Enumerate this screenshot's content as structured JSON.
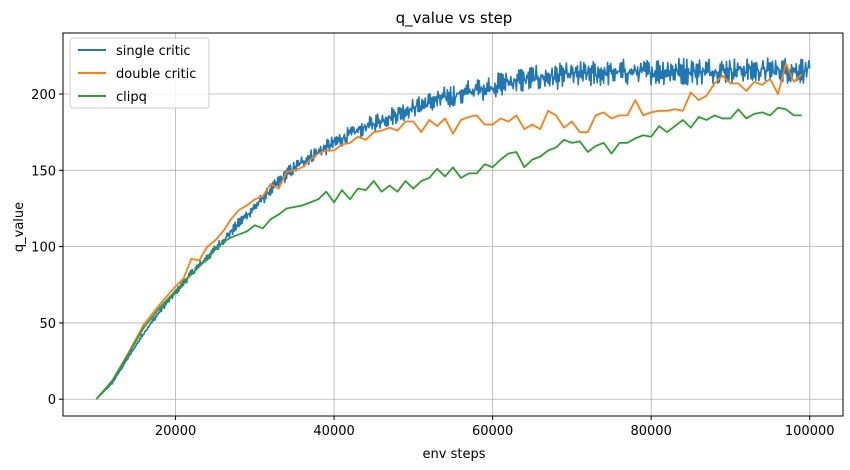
{
  "chart_data": {
    "type": "line",
    "title": "q_value vs step",
    "xlabel": "env steps",
    "ylabel": "q_value",
    "xlim": [
      5800,
      104200
    ],
    "ylim": [
      -11,
      240
    ],
    "xticks": [
      20000,
      40000,
      60000,
      80000,
      100000
    ],
    "yticks": [
      0,
      50,
      100,
      150,
      200
    ],
    "grid": true,
    "legend_position": "top-left",
    "series": [
      {
        "name": "single critic",
        "color": "#1f77b4",
        "style": "noisy-band",
        "x": [
          10000,
          12000,
          14000,
          16000,
          18000,
          20000,
          22000,
          24000,
          26000,
          28000,
          30000,
          32000,
          34000,
          36000,
          38000,
          40000,
          42000,
          44000,
          46000,
          48000,
          50000,
          52000,
          54000,
          56000,
          58000,
          60000,
          62000,
          64000,
          66000,
          68000,
          70000,
          72000,
          74000,
          76000,
          78000,
          80000,
          82000,
          84000,
          86000,
          88000,
          90000,
          92000,
          94000,
          96000,
          98000,
          100000
        ],
        "lower": [
          0,
          10,
          26,
          42,
          56,
          68,
          80,
          90,
          101,
          112,
          122,
          133,
          143,
          151,
          157,
          163,
          168,
          173,
          177,
          181,
          185,
          188,
          190,
          192,
          195,
          197,
          200,
          201,
          202,
          203,
          204,
          204,
          205,
          205,
          206,
          206,
          206,
          206,
          206,
          207,
          207,
          207,
          207,
          207,
          207,
          207
        ],
        "upper": [
          0,
          11,
          28,
          45,
          59,
          72,
          85,
          96,
          107,
          119,
          130,
          141,
          152,
          160,
          167,
          173,
          179,
          184,
          189,
          193,
          197,
          201,
          205,
          208,
          211,
          213,
          216,
          218,
          219,
          220,
          221,
          222,
          222,
          223,
          223,
          223,
          224,
          224,
          224,
          224,
          224,
          224,
          224,
          224,
          224,
          224
        ]
      },
      {
        "name": "double critic",
        "color": "#ff7f0e",
        "x": [
          10000,
          12000,
          14000,
          16000,
          18000,
          20000,
          21000,
          22000,
          23000,
          24000,
          25000,
          26000,
          27000,
          28000,
          29000,
          30000,
          31000,
          32000,
          33000,
          34000,
          35000,
          36000,
          37000,
          38000,
          39000,
          40000,
          41000,
          42000,
          43000,
          44000,
          45000,
          46000,
          47000,
          48000,
          49000,
          50000,
          51000,
          52000,
          53000,
          54000,
          55000,
          56000,
          57000,
          58000,
          59000,
          60000,
          61000,
          62000,
          63000,
          64000,
          65000,
          66000,
          67000,
          68000,
          69000,
          70000,
          71000,
          72000,
          73000,
          74000,
          75000,
          76000,
          77000,
          78000,
          79000,
          80000,
          81000,
          82000,
          83000,
          84000,
          85000,
          86000,
          87000,
          88000,
          89000,
          90000,
          91000,
          92000,
          93000,
          94000,
          95000,
          96000,
          97000,
          98000,
          99000
        ],
        "values": [
          0,
          12,
          30,
          49,
          62,
          74,
          79,
          92,
          91,
          100,
          104,
          110,
          118,
          124,
          127,
          131,
          133,
          141,
          138,
          149,
          150,
          152,
          157,
          161,
          163,
          163,
          167,
          168,
          172,
          170,
          175,
          176,
          178,
          176,
          182,
          182,
          175,
          183,
          179,
          184,
          174,
          183,
          185,
          186,
          180,
          180,
          184,
          182,
          186,
          177,
          180,
          177,
          189,
          186,
          178,
          182,
          175,
          175,
          186,
          188,
          184,
          186,
          186,
          196,
          186,
          188,
          189,
          189,
          190,
          189,
          201,
          196,
          199,
          207,
          212,
          207,
          207,
          202,
          208,
          206,
          210,
          200,
          220,
          208,
          213
        ]
      },
      {
        "name": "clipq",
        "color": "#2ca02c",
        "x": [
          10000,
          12000,
          14000,
          16000,
          18000,
          20000,
          22000,
          24000,
          25000,
          26000,
          27000,
          28000,
          29000,
          30000,
          31000,
          32000,
          33000,
          34000,
          35000,
          36000,
          37000,
          38000,
          39000,
          40000,
          41000,
          42000,
          43000,
          44000,
          45000,
          46000,
          47000,
          48000,
          49000,
          50000,
          51000,
          52000,
          53000,
          54000,
          55000,
          56000,
          57000,
          58000,
          59000,
          60000,
          61000,
          62000,
          63000,
          64000,
          65000,
          66000,
          67000,
          68000,
          69000,
          70000,
          71000,
          72000,
          73000,
          74000,
          75000,
          76000,
          77000,
          78000,
          79000,
          80000,
          81000,
          82000,
          83000,
          84000,
          85000,
          86000,
          87000,
          88000,
          89000,
          90000,
          91000,
          92000,
          93000,
          94000,
          95000,
          96000,
          97000,
          98000,
          99000
        ],
        "values": [
          0,
          12,
          29,
          47,
          60,
          71,
          82,
          92,
          98,
          103,
          106,
          108,
          110,
          114,
          112,
          118,
          121,
          125,
          126,
          127,
          129,
          131,
          136,
          129,
          137,
          131,
          138,
          137,
          143,
          136,
          140,
          136,
          143,
          138,
          143,
          145,
          151,
          146,
          152,
          145,
          148,
          148,
          154,
          152,
          157,
          161,
          162,
          152,
          157,
          159,
          163,
          165,
          170,
          168,
          169,
          162,
          166,
          168,
          161,
          168,
          168,
          171,
          173,
          172,
          179,
          175,
          179,
          183,
          178,
          185,
          183,
          186,
          184,
          184,
          190,
          184,
          187,
          188,
          186,
          191,
          190,
          186,
          186
        ]
      }
    ]
  }
}
